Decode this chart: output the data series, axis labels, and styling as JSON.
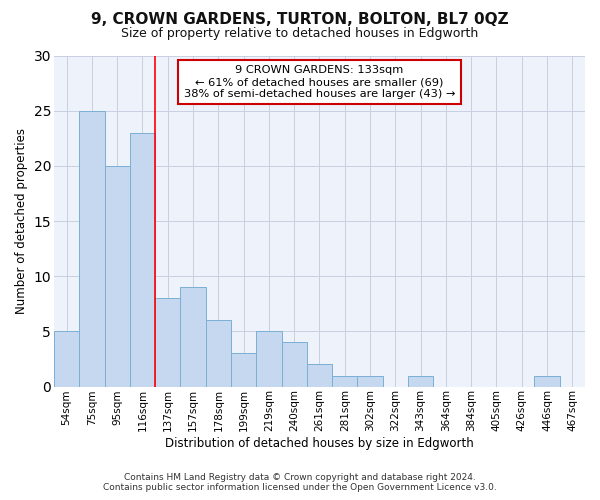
{
  "title": "9, CROWN GARDENS, TURTON, BOLTON, BL7 0QZ",
  "subtitle": "Size of property relative to detached houses in Edgworth",
  "xlabel": "Distribution of detached houses by size in Edgworth",
  "ylabel": "Number of detached properties",
  "categories": [
    "54sqm",
    "75sqm",
    "95sqm",
    "116sqm",
    "137sqm",
    "157sqm",
    "178sqm",
    "199sqm",
    "219sqm",
    "240sqm",
    "261sqm",
    "281sqm",
    "302sqm",
    "322sqm",
    "343sqm",
    "364sqm",
    "384sqm",
    "405sqm",
    "426sqm",
    "446sqm",
    "467sqm"
  ],
  "values": [
    5,
    25,
    20,
    23,
    8,
    9,
    6,
    3,
    5,
    4,
    2,
    1,
    1,
    0,
    1,
    0,
    0,
    0,
    0,
    1,
    0
  ],
  "bar_color": "#c5d8f0",
  "bar_edge_color": "#7bafd4",
  "grid_color": "#c8d0e0",
  "annotation_box_edge_color": "#cc0000",
  "annotation_text_line1": "9 CROWN GARDENS: 133sqm",
  "annotation_text_line2": "← 61% of detached houses are smaller (69)",
  "annotation_text_line3": "38% of semi-detached houses are larger (43) →",
  "red_line_index": 4,
  "ylim": [
    0,
    30
  ],
  "yticks": [
    0,
    5,
    10,
    15,
    20,
    25,
    30
  ],
  "footer_line1": "Contains HM Land Registry data © Crown copyright and database right 2024.",
  "footer_line2": "Contains public sector information licensed under the Open Government Licence v3.0.",
  "bg_color": "#ffffff",
  "plot_bg_color": "#eef2fb"
}
